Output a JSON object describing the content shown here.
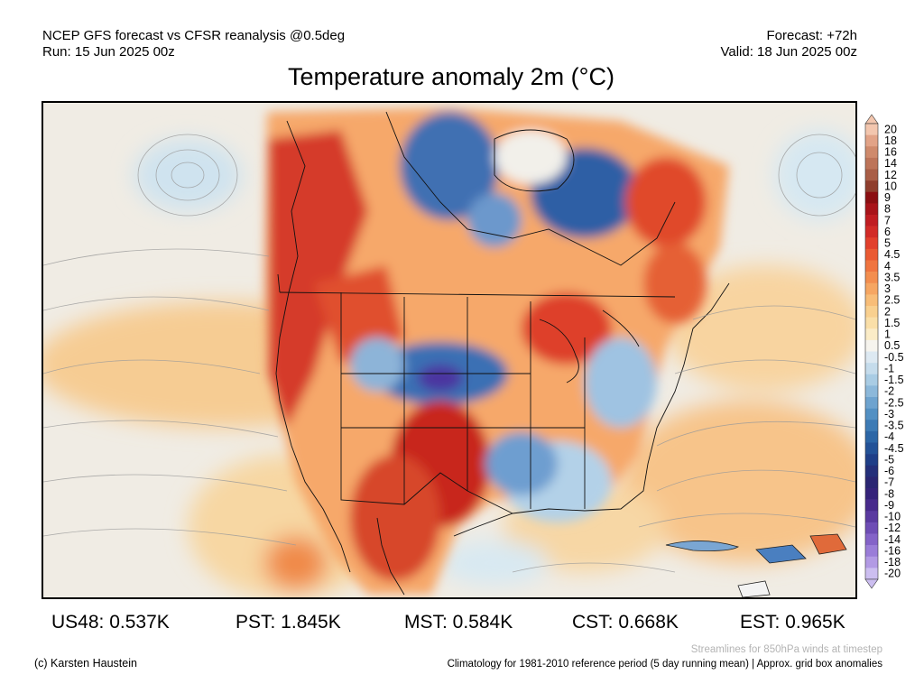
{
  "header": {
    "model_line": "NCEP GFS forecast vs CFSR reanalysis @0.5deg",
    "run_line": "Run: 15 Jun 2025 00z",
    "forecast_line": "Forecast: +72h",
    "valid_line": "Valid: 18 Jun 2025 00z"
  },
  "title": "Temperature anomaly 2m (°C)",
  "legend": {
    "labels": [
      "20",
      "18",
      "16",
      "14",
      "12",
      "10",
      "9",
      "8",
      "7",
      "6",
      "5",
      "4.5",
      "4",
      "3.5",
      "3",
      "2.5",
      "2",
      "1.5",
      "1",
      "0.5",
      "-0.5",
      "-1",
      "-1.5",
      "-2",
      "-2.5",
      "-3",
      "-3.5",
      "-4",
      "-4.5",
      "-5",
      "-6",
      "-7",
      "-8",
      "-9",
      "-10",
      "-12",
      "-14",
      "-16",
      "-18",
      "-20"
    ],
    "colors": [
      "#f3c6ae",
      "#e2a387",
      "#cf8a6c",
      "#bd7459",
      "#a95e46",
      "#8f3e2d",
      "#8b0f12",
      "#a8141a",
      "#c01d22",
      "#d22b27",
      "#e2402c",
      "#ea5a33",
      "#f07540",
      "#f38e4f",
      "#f6a662",
      "#f8bd78",
      "#f9d08f",
      "#fadfa8",
      "#fbecc7",
      "#f6f4ee",
      "#dde9f2",
      "#c5dcec",
      "#a9cce4",
      "#8cb8da",
      "#6ea3cf",
      "#5390c3",
      "#3d7bb5",
      "#2c66a6",
      "#235297",
      "#1f3f88",
      "#24307a",
      "#2a2672",
      "#35237a",
      "#482b8c",
      "#5a3aa0",
      "#6e4db5",
      "#8463c8",
      "#9a7dd8",
      "#b29ae4",
      "#ccbef0"
    ]
  },
  "stats": [
    {
      "label": "US48: 0.537K"
    },
    {
      "label": "PST: 1.845K"
    },
    {
      "label": "MST: 0.584K"
    },
    {
      "label": "CST: 0.668K"
    },
    {
      "label": "EST: 0.965K"
    }
  ],
  "footer": {
    "credit": "(c) Karsten Haustein",
    "streamlines_note": "Streamlines for 850hPa winds at timestep",
    "climatology_note": "Climatology for 1981-2010 reference period (5 day running mean) | Approx. grid box anomalies"
  }
}
